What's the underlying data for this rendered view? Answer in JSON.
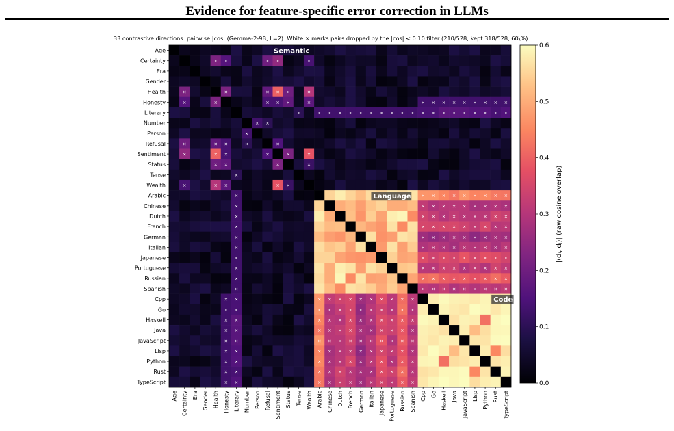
{
  "page": {
    "title": "Evidence for feature-specific error correction in LLMs"
  },
  "chart_data": {
    "type": "heatmap",
    "subtitle": "33 contrastive directions: pairwise |cos| (Gemma-2-9B, L=2). White × marks pairs dropped by the |cos| < 0.10 filter (210/528; kept 318/528, 60\\%).",
    "colormap": "magma",
    "vmin": 0.0,
    "vmax": 0.6,
    "colorbar_label": "|⟨dᵢ, dⱼ⟩|  (raw cosine overlap)",
    "colorbar_ticks": [
      "0.0",
      "0.1",
      "0.2",
      "0.3",
      "0.4",
      "0.5",
      "0.6"
    ],
    "colorbar_tick_values": [
      0.0,
      0.1,
      0.2,
      0.3,
      0.4,
      0.5,
      0.6
    ],
    "drop_marker": "×",
    "labels": [
      "Age",
      "Certainty",
      "Era",
      "Gender",
      "Health",
      "Honesty",
      "Literary",
      "Number",
      "Person",
      "Refusal",
      "Sentiment",
      "Status",
      "Tense",
      "Wealth",
      "Arabic",
      "Chinese",
      "Dutch",
      "French",
      "German",
      "Italian",
      "Japanese",
      "Portuguese",
      "Russian",
      "Spanish",
      "Cpp",
      "Go",
      "Haskell",
      "Java",
      "JavaScript",
      "Lisp",
      "Python",
      "Rust",
      "TypeScript"
    ],
    "groups": [
      {
        "name": "Semantic",
        "start": 0,
        "end": 13
      },
      {
        "name": "Language",
        "start": 14,
        "end": 23
      },
      {
        "name": "Code",
        "start": 24,
        "end": 32
      }
    ],
    "semantic_strong": [
      [
        1,
        4,
        0.22
      ],
      [
        1,
        5,
        0.16
      ],
      [
        1,
        9,
        0.2
      ],
      [
        1,
        10,
        0.25
      ],
      [
        1,
        13,
        0.14
      ],
      [
        4,
        5,
        0.22
      ],
      [
        4,
        9,
        0.18
      ],
      [
        4,
        10,
        0.4
      ],
      [
        4,
        13,
        0.3
      ],
      [
        4,
        11,
        0.2
      ],
      [
        4,
        10,
        0.4
      ],
      [
        5,
        11,
        0.18
      ],
      [
        5,
        9,
        0.14
      ],
      [
        5,
        10,
        0.14
      ],
      [
        5,
        13,
        0.17
      ],
      [
        9,
        10,
        0.15
      ],
      [
        10,
        13,
        0.38
      ],
      [
        10,
        11,
        0.22
      ],
      [
        11,
        13,
        0.12
      ],
      [
        7,
        8,
        0.13
      ],
      [
        7,
        9,
        0.1
      ],
      [
        6,
        12,
        0.1
      ]
    ],
    "language_pairs": [
      [
        14,
        15,
        0.55
      ],
      [
        14,
        16,
        0.58
      ],
      [
        14,
        17,
        0.55
      ],
      [
        14,
        18,
        0.52
      ],
      [
        14,
        19,
        0.56
      ],
      [
        14,
        20,
        0.55
      ],
      [
        14,
        21,
        0.57
      ],
      [
        14,
        22,
        0.56
      ],
      [
        14,
        23,
        0.57
      ],
      [
        15,
        16,
        0.5
      ],
      [
        15,
        17,
        0.52
      ],
      [
        15,
        18,
        0.48
      ],
      [
        15,
        19,
        0.53
      ],
      [
        15,
        20,
        0.55
      ],
      [
        15,
        21,
        0.5
      ],
      [
        15,
        22,
        0.5
      ],
      [
        15,
        23,
        0.52
      ]
    ],
    "lang_code": [
      [
        14,
        0.45
      ],
      [
        15,
        0.3
      ],
      [
        16,
        0.32
      ],
      [
        17,
        0.33
      ],
      [
        18,
        0.26
      ],
      [
        19,
        0.3
      ],
      [
        20,
        0.36
      ],
      [
        21,
        0.32
      ],
      [
        22,
        0.4
      ],
      [
        23,
        0.3
      ]
    ]
  }
}
